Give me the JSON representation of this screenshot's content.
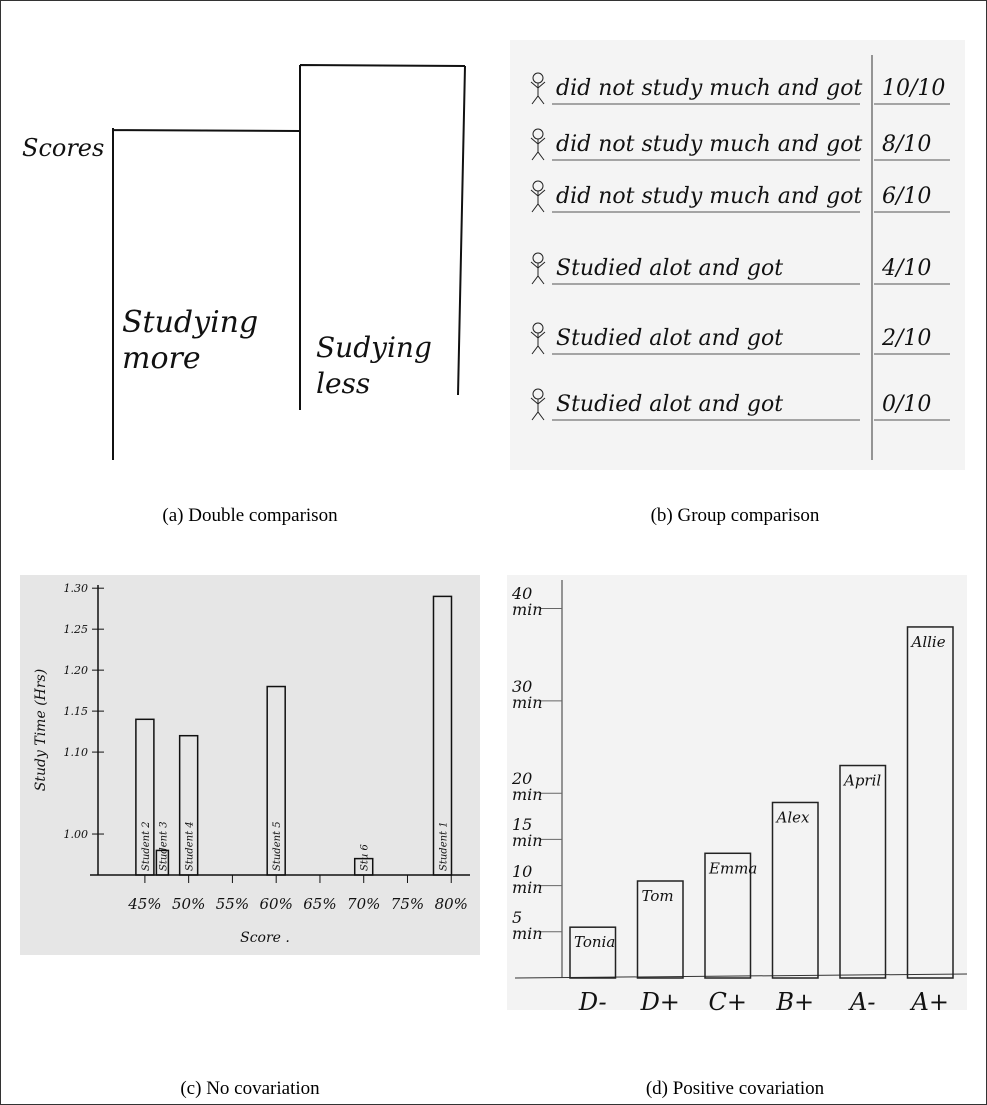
{
  "figure": {
    "panels": [
      {
        "caption": "(a) Double comparison",
        "sketch": {
          "axis_label": "Scores",
          "bars": [
            "Studying more",
            "Sudying less"
          ]
        }
      },
      {
        "caption": "(b) Group comparison",
        "sketch": {
          "rows": [
            {
              "text": "did not study much and got",
              "score": "10/10"
            },
            {
              "text": "did not study much and got",
              "score": "8/10"
            },
            {
              "text": "did not study much and got",
              "score": "6/10"
            },
            {
              "text": "Studied alot and got",
              "score": "4/10"
            },
            {
              "text": "Studied alot and got",
              "score": "2/10"
            },
            {
              "text": "Studied alot and got",
              "score": "0/10"
            }
          ]
        }
      },
      {
        "caption": "(c) No covariation",
        "chart": {
          "type": "bar",
          "x_label": "Score .",
          "y_label": "Study Time (Hrs)",
          "x": [
            45,
            47,
            50,
            60,
            70,
            79
          ],
          "values": [
            1.14,
            0.98,
            1.12,
            1.18,
            0.97,
            1.29
          ],
          "bar_labels": [
            "Student 2",
            "Student 3",
            "Student 4",
            "Student 5",
            "Stu 6",
            "Student 1"
          ],
          "xlim": [
            39.3,
            81
          ],
          "xticks": [
            {
              "value": 45,
              "label": "45%"
            },
            {
              "value": 50,
              "label": "50%"
            },
            {
              "value": 55,
              "label": "55%"
            },
            {
              "value": 60,
              "label": "60%"
            },
            {
              "value": 65,
              "label": "65%"
            },
            {
              "value": 70,
              "label": "70%"
            },
            {
              "value": 75,
              "label": "75%"
            },
            {
              "value": 80,
              "label": "80%"
            }
          ],
          "ylim": [
            0.95,
            1.31
          ],
          "yticks": [
            {
              "value": 1.3,
              "label": "1.30"
            },
            1.25,
            {
              "value": 1.2,
              "label": "1.20"
            },
            1.15,
            {
              "value": 1.1,
              "label": "1.10"
            },
            {
              "value": 1.0,
              "label": "1.00"
            }
          ]
        }
      },
      {
        "caption": "(d) Positive covariation",
        "chart": {
          "type": "bar",
          "categories": [
            "D-",
            "D+",
            "C+",
            "B+",
            "A-",
            "A+"
          ],
          "values": [
            5.5,
            10.5,
            13.5,
            19,
            23,
            38
          ],
          "bar_labels": [
            "Tonia",
            "Tom",
            "Emma",
            "Alex",
            "April",
            "Allie"
          ],
          "ylim": [
            0,
            42
          ],
          "yticks": [
            {
              "value": 40,
              "label": "40 min"
            },
            {
              "value": 30,
              "label": "30 min"
            },
            {
              "value": 20,
              "label": "20 min"
            },
            {
              "value": 15,
              "label": "15 min"
            },
            {
              "value": 10,
              "label": "10 min"
            },
            {
              "value": 5,
              "label": "5 min"
            }
          ]
        }
      }
    ]
  }
}
